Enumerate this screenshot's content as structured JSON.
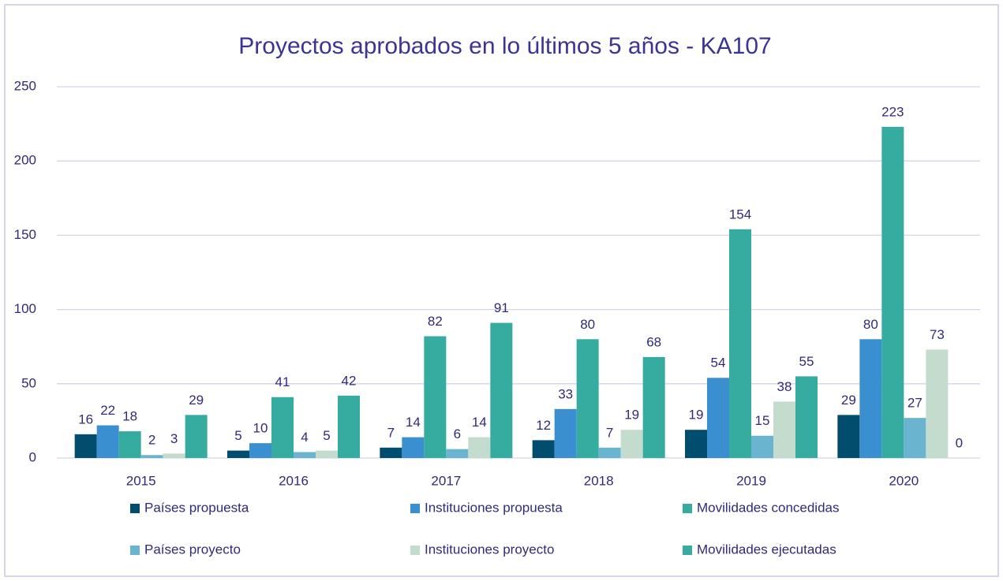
{
  "chart_data": {
    "type": "bar",
    "title": "Proyectos aprobados en lo últimos 5 años - KA107",
    "categories": [
      "2015",
      "2016",
      "2017",
      "2018",
      "2019",
      "2020"
    ],
    "series": [
      {
        "name": "Países propuesta",
        "color": "#014d6e",
        "values": [
          16,
          5,
          7,
          12,
          19,
          29
        ]
      },
      {
        "name": "Instituciones propuesta",
        "color": "#3a8fd1",
        "values": [
          22,
          10,
          14,
          33,
          54,
          80
        ]
      },
      {
        "name": "Movilidades concedidas",
        "color": "#36aca1",
        "values": [
          18,
          41,
          82,
          80,
          154,
          223
        ]
      },
      {
        "name": "Países proyecto",
        "color": "#6bb4cf",
        "values": [
          2,
          4,
          6,
          7,
          15,
          27
        ]
      },
      {
        "name": "Instituciones proyecto",
        "color": "#c3dccd",
        "values": [
          3,
          5,
          14,
          19,
          38,
          73
        ]
      },
      {
        "name": "Movilidades ejecutadas",
        "color": "#36aca1",
        "values": [
          29,
          42,
          91,
          68,
          55,
          0
        ]
      }
    ],
    "ylim": [
      0,
      250
    ],
    "yticks": [
      0,
      50,
      100,
      150,
      200,
      250
    ],
    "grid": true,
    "legend": "bottom"
  }
}
